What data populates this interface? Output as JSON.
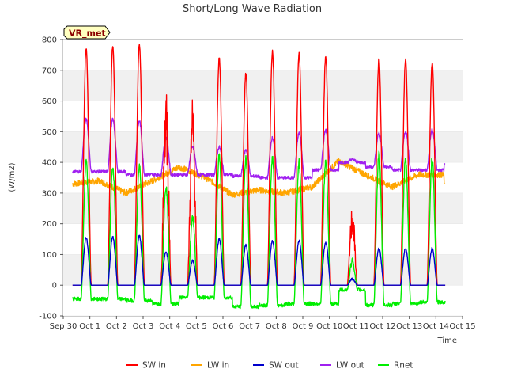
{
  "chart_data": {
    "type": "line",
    "title": "Short/Long Wave Radiation",
    "xlabel": "Time",
    "ylabel": "(W/m2)",
    "tag": "VR_met",
    "x_ticks": [
      "Sep 30",
      "Oct 1",
      "Oct 2",
      "Oct 3",
      "Oct 4",
      "Oct 5",
      "Oct 6",
      "Oct 7",
      "Oct 8",
      "Oct 9",
      "Oct 10",
      "Oct 11",
      "Oct 12",
      "Oct 13",
      "Oct 14",
      "Oct 15"
    ],
    "y_ticks": [
      -100,
      0,
      100,
      200,
      300,
      400,
      500,
      600,
      700,
      800
    ],
    "xlim": [
      0,
      15
    ],
    "ylim": [
      -100,
      800
    ],
    "x_unit": "days since Sep 30",
    "data_start": 0.35,
    "data_end": 14.35,
    "legend_position": "bottom",
    "grid": "alternating horizontal bands",
    "series": [
      {
        "name": "SW in",
        "color": "#ff0000",
        "daily_peaks": [
          770,
          780,
          785,
          560,
          500,
          740,
          690,
          760,
          755,
          745,
          210,
          735,
          735,
          725
        ],
        "night_value": 0
      },
      {
        "name": "LW in",
        "color": "#ffa500",
        "daily_levels": [
          330,
          340,
          300,
          340,
          385,
          350,
          295,
          310,
          300,
          320,
          405,
          360,
          320,
          360
        ],
        "end_value": 330
      },
      {
        "name": "SW out",
        "color": "#0000cc",
        "daily_peaks": [
          155,
          158,
          160,
          110,
          80,
          150,
          130,
          145,
          145,
          140,
          20,
          120,
          120,
          120
        ],
        "night_value": 0
      },
      {
        "name": "LW out",
        "color": "#a020f0",
        "daily_peaks": [
          540,
          540,
          535,
          480,
          450,
          450,
          440,
          480,
          495,
          505,
          410,
          495,
          500,
          505
        ],
        "night_levels": [
          370,
          370,
          360,
          360,
          360,
          360,
          355,
          350,
          350,
          375,
          400,
          385,
          375,
          375
        ],
        "end_value": 395
      },
      {
        "name": "Rnet",
        "color": "#00ee00",
        "daily_peaks": [
          400,
          385,
          385,
          320,
          220,
          420,
          410,
          415,
          400,
          400,
          80,
          425,
          410,
          410
        ],
        "night_levels": [
          -45,
          -45,
          -50,
          -60,
          -40,
          -40,
          -70,
          -65,
          -60,
          -60,
          -15,
          -65,
          -60,
          -55
        ]
      }
    ]
  }
}
